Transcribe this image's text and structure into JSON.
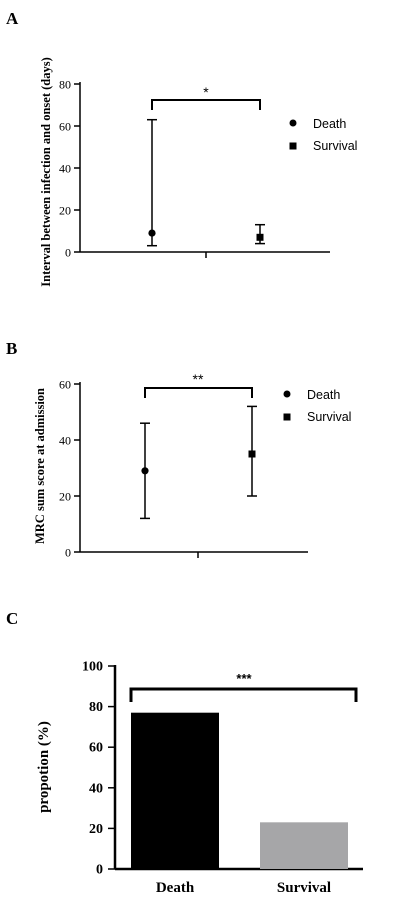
{
  "chart_data": [
    {
      "type": "scatter",
      "panel": "A",
      "ylabel": "Interval between infection and onset (days)",
      "ylim": [
        0,
        80
      ],
      "yticks": [
        0,
        20,
        40,
        60,
        80
      ],
      "significance": "*",
      "series": [
        {
          "name": "Death",
          "marker": "circle",
          "value": 9,
          "err_low": 3,
          "err_high": 63
        },
        {
          "name": "Survival",
          "marker": "square",
          "value": 7,
          "err_low": 4,
          "err_high": 13
        }
      ]
    },
    {
      "type": "scatter",
      "panel": "B",
      "ylabel": "MRC sum score at admission",
      "ylim": [
        0,
        60
      ],
      "yticks": [
        0,
        20,
        40,
        60
      ],
      "significance": "**",
      "series": [
        {
          "name": "Death",
          "marker": "circle",
          "value": 29,
          "err_low": 12,
          "err_high": 46
        },
        {
          "name": "Survival",
          "marker": "square",
          "value": 35,
          "err_low": 20,
          "err_high": 52
        }
      ]
    },
    {
      "type": "bar",
      "panel": "C",
      "ylabel": "propotion (%)",
      "ylim": [
        0,
        100
      ],
      "yticks": [
        0,
        20,
        40,
        60,
        80,
        100
      ],
      "significance": "***",
      "categories": [
        "Death",
        "Survival"
      ],
      "values": [
        77,
        23
      ],
      "colors": [
        "#000000",
        "#a6a6a8"
      ]
    }
  ]
}
